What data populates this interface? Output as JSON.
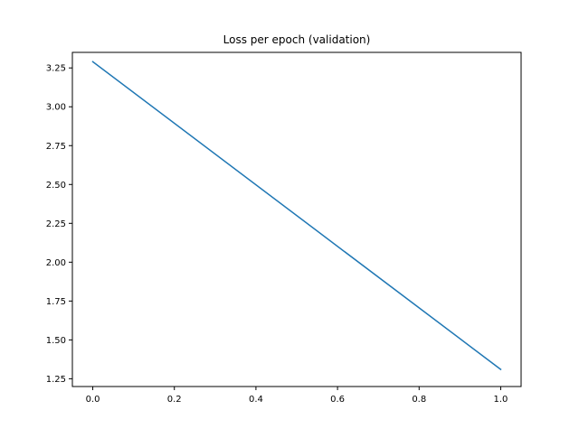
{
  "chart_data": {
    "type": "line",
    "title": "Loss per epoch (validation)",
    "xlabel": "",
    "ylabel": "",
    "xlim": [
      -0.05,
      1.05
    ],
    "ylim": [
      1.2,
      3.35
    ],
    "x_ticks": [
      0.0,
      0.2,
      0.4,
      0.6,
      0.8,
      1.0
    ],
    "x_tick_labels": [
      "0.0",
      "0.2",
      "0.4",
      "0.6",
      "0.8",
      "1.0"
    ],
    "y_ticks": [
      1.25,
      1.5,
      1.75,
      2.0,
      2.25,
      2.5,
      2.75,
      3.0,
      3.25
    ],
    "y_tick_labels": [
      "1.25",
      "1.50",
      "1.75",
      "2.00",
      "2.25",
      "2.50",
      "2.75",
      "3.00",
      "3.25"
    ],
    "grid": false,
    "legend": "none",
    "series": [
      {
        "color": "#1f77b4",
        "x": [
          0.0,
          1.0
        ],
        "y": [
          3.29,
          1.31
        ]
      }
    ]
  }
}
